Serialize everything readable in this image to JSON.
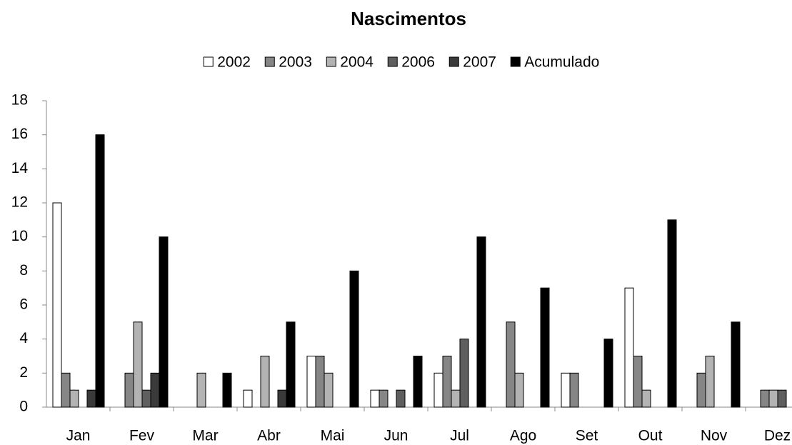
{
  "chart_data": {
    "type": "bar",
    "title": "Nascimentos",
    "categories": [
      "Jan",
      "Fev",
      "Mar",
      "Abr",
      "Mai",
      "Jun",
      "Jul",
      "Ago",
      "Set",
      "Out",
      "Nov",
      "Dez"
    ],
    "series": [
      {
        "name": "2002",
        "color": "#ffffff",
        "values": [
          12,
          0,
          0,
          1,
          3,
          1,
          2,
          0,
          2,
          7,
          0,
          0
        ]
      },
      {
        "name": "2003",
        "color": "#868686",
        "values": [
          2,
          2,
          0,
          0,
          3,
          1,
          3,
          5,
          2,
          3,
          2,
          1
        ]
      },
      {
        "name": "2004",
        "color": "#b3b3b3",
        "values": [
          1,
          5,
          2,
          3,
          2,
          0,
          1,
          2,
          0,
          1,
          3,
          1
        ]
      },
      {
        "name": "2006",
        "color": "#5f5f5f",
        "values": [
          0,
          1,
          0,
          0,
          0,
          1,
          4,
          0,
          0,
          0,
          0,
          1
        ]
      },
      {
        "name": "2007",
        "color": "#3a3a3a",
        "values": [
          1,
          2,
          0,
          1,
          0,
          0,
          0,
          0,
          0,
          0,
          0,
          0
        ]
      },
      {
        "name": "Acumulado",
        "color": "#000000",
        "values": [
          16,
          10,
          2,
          5,
          8,
          3,
          10,
          7,
          4,
          11,
          5,
          null
        ]
      }
    ],
    "ylim": [
      0,
      18
    ],
    "yticks": [
      0,
      2,
      4,
      6,
      8,
      10,
      12,
      14,
      16,
      18
    ],
    "grid": false,
    "legend": "top"
  }
}
